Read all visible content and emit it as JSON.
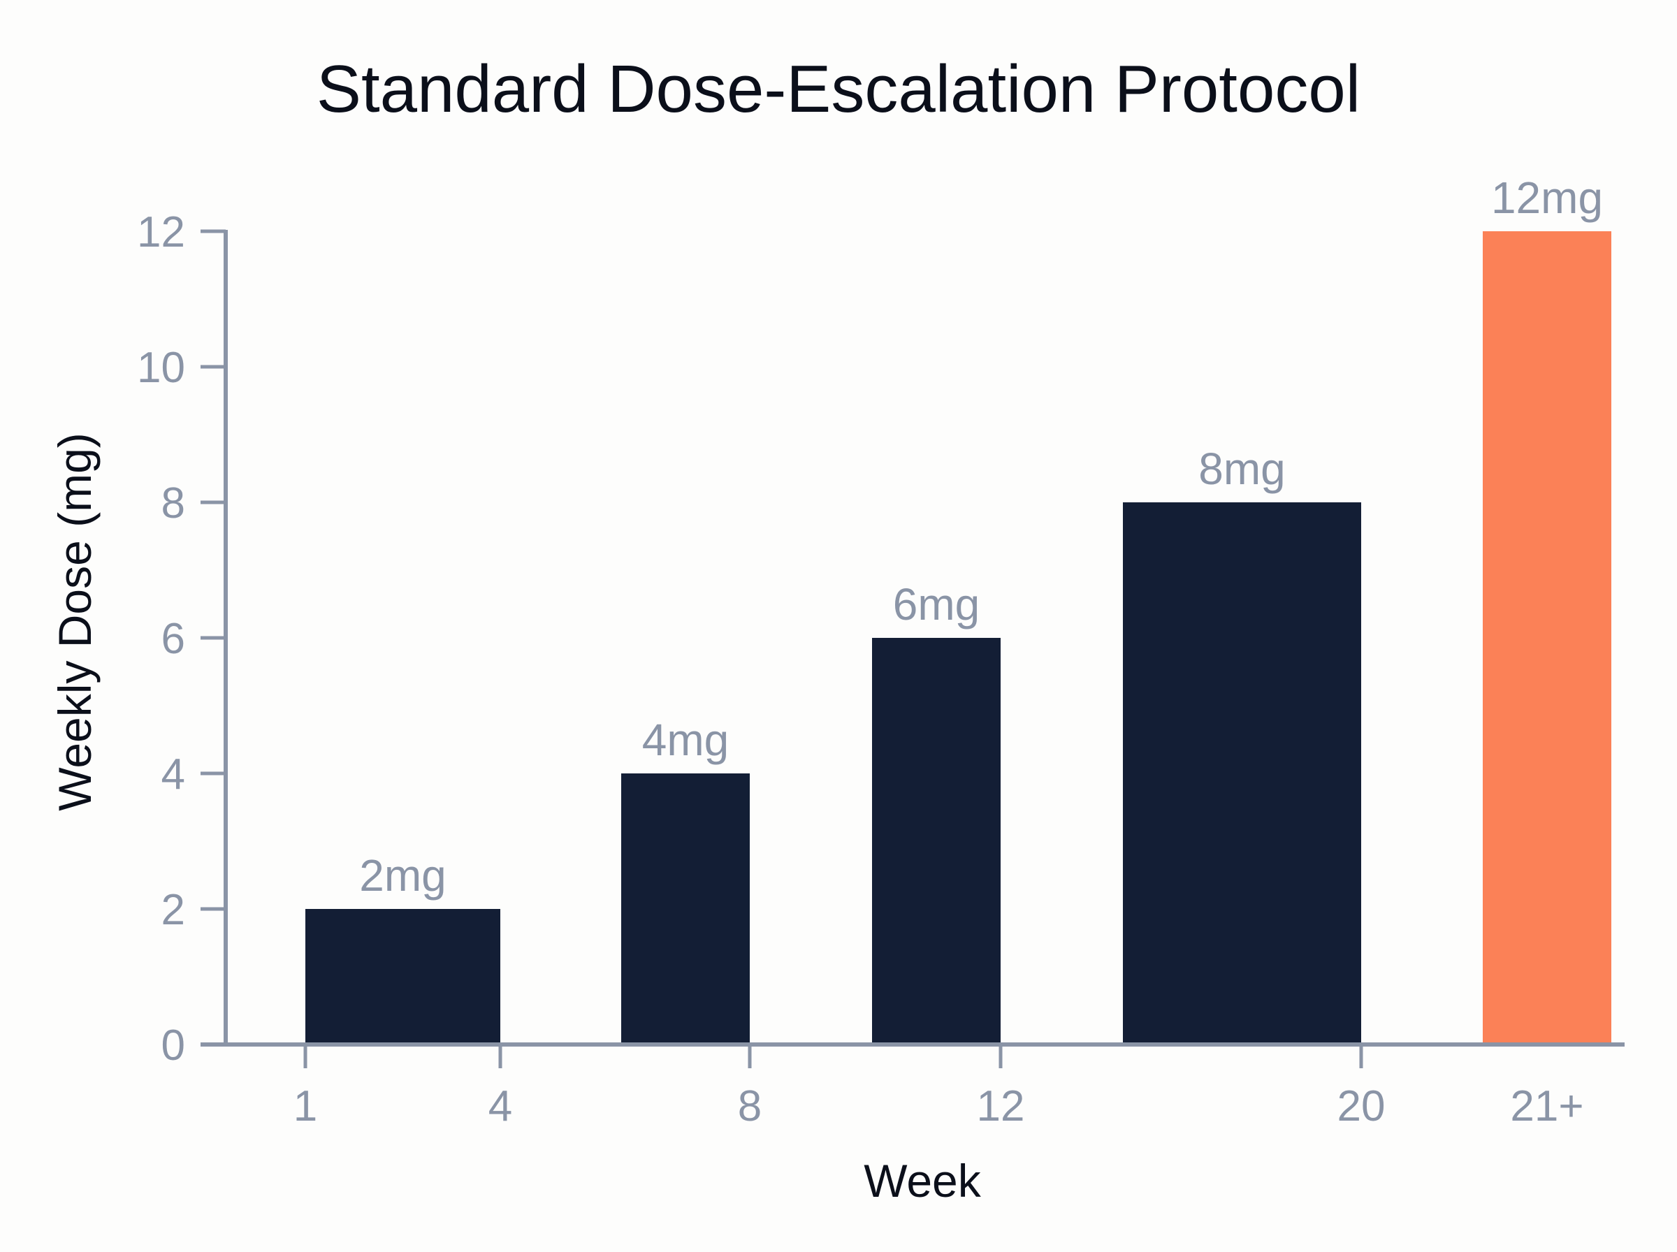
{
  "chart_data": {
    "type": "bar",
    "title": "Standard Dose-Escalation Protocol",
    "xlabel": "Week",
    "ylabel": "Weekly Dose (mg)",
    "ylim": [
      0,
      12
    ],
    "y_ticks": [
      "0",
      "2",
      "4",
      "6",
      "8",
      "10",
      "12"
    ],
    "x_ticks": [
      {
        "label": "1",
        "week": 1
      },
      {
        "label": "4",
        "week": 4
      },
      {
        "label": "8",
        "week": 8
      },
      {
        "label": "12",
        "week": 12
      },
      {
        "label": "20",
        "week": 20
      },
      {
        "label": "21+",
        "week": 21
      }
    ],
    "bars": [
      {
        "start_week": 1,
        "end_week": 4,
        "value": 2,
        "label": "2mg",
        "highlight": false
      },
      {
        "start_week": 5,
        "end_week": 8,
        "value": 4,
        "label": "4mg",
        "highlight": false
      },
      {
        "start_week": 9,
        "end_week": 12,
        "value": 6,
        "label": "6mg",
        "highlight": false
      },
      {
        "start_week": 13,
        "end_week": 20,
        "value": 8,
        "label": "8mg",
        "highlight": false
      },
      {
        "start_week": 21,
        "end_week": null,
        "value": 12,
        "label": "12mg",
        "highlight": true
      }
    ],
    "grid": false,
    "colors": {
      "bar": "#131e35",
      "highlight": "#fb8157",
      "axis": "#8a94a6",
      "text": "#0b0f1a",
      "muted_text": "#8a94a6"
    }
  }
}
